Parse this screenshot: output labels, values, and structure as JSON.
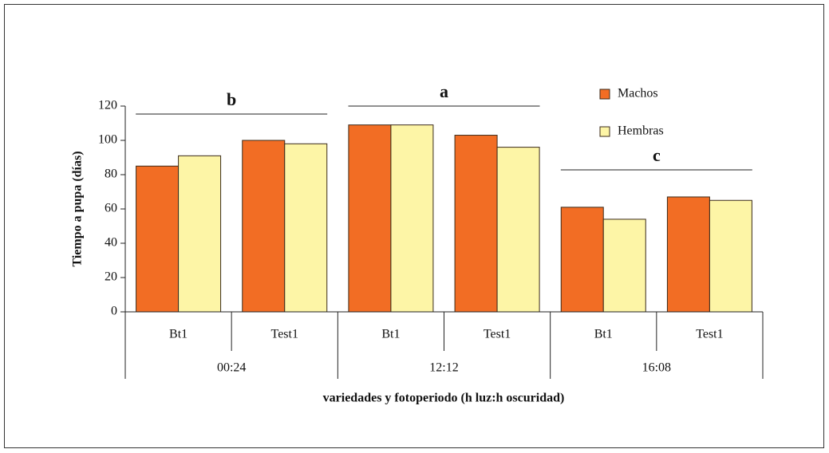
{
  "chart_data": {
    "type": "bar",
    "y_label": "Tiempo a pupa (días)",
    "x_label": "variedades y fotoperiodo (h luz:h oscuridad)",
    "categories": [
      "Bt1",
      "Test1",
      "Bt1",
      "Test1",
      "Bt1",
      "Test1"
    ],
    "groups": [
      "00:24",
      "12:12",
      "16:08"
    ],
    "annotations": [
      "b",
      "a",
      "c"
    ],
    "series": [
      {
        "name": "Machos",
        "color": "#f26d24",
        "values": [
          85,
          100,
          109,
          103,
          61,
          67
        ]
      },
      {
        "name": "Hembras",
        "color": "#fdf5a6",
        "values": [
          91,
          98,
          109,
          96,
          54,
          65
        ]
      }
    ],
    "ylim": [
      0,
      120
    ],
    "yticks": [
      0,
      20,
      40,
      60,
      80,
      100,
      120
    ]
  }
}
